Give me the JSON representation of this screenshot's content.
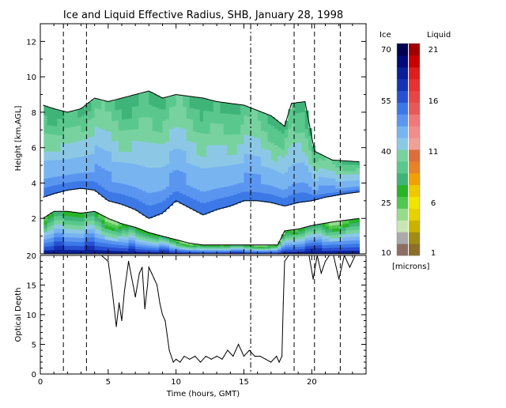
{
  "chart_data": [
    {
      "type": "heatmap",
      "title": "Ice and Liquid Effective Radius, SHB, January 28, 1998",
      "xlim": [
        0,
        24
      ],
      "ylim": [
        0,
        13
      ],
      "ylabel": "Height [km,AGL]",
      "y_ticks": [
        "2",
        "4",
        "6",
        "8",
        "10",
        "12"
      ],
      "colorbar": {
        "ice_label": "Ice",
        "liquid_label": "Liquid",
        "units_label": "[microns]",
        "ice_ticks": [
          "10",
          "25",
          "40",
          "55",
          "70"
        ],
        "liquid_ticks": [
          "1",
          "6",
          "11",
          "16",
          "21"
        ],
        "ice_colors": [
          "#8c6e64",
          "#aaaaaa",
          "#c8e6b4",
          "#96dc8c",
          "#50c850",
          "#28b428",
          "#40b478",
          "#5ac88c",
          "#78d2a0",
          "#8cc8e6",
          "#78b4f0",
          "#5a96f0",
          "#3c78e6",
          "#2850d2",
          "#1432b4",
          "#0a1e96",
          "#000a78",
          "#000050"
        ],
        "liquid_colors": [
          "#8c6e28",
          "#a08c14",
          "#c8b400",
          "#e6d200",
          "#f0e600",
          "#f0c800",
          "#f0a000",
          "#e68228",
          "#dc6e3c",
          "#f0a096",
          "#f08c8c",
          "#f07878",
          "#e65a5a",
          "#e64646",
          "#e63232",
          "#dc1e1e",
          "#c80000",
          "#a00000"
        ]
      },
      "dashed_times_hours": [
        1.7,
        3.4,
        18.7,
        20.2,
        22.1
      ],
      "dashdot_times_hours": [
        15.5
      ],
      "layers": [
        {
          "name": "upper",
          "ice_radius_microns": [
            30,
            50
          ],
          "top_km": [
            [
              0.2,
              8.4
            ],
            [
              1.0,
              8.2
            ],
            [
              2.0,
              8.0
            ],
            [
              3.0,
              8.2
            ],
            [
              4.0,
              8.8
            ],
            [
              5.0,
              8.6
            ],
            [
              6.0,
              8.8
            ],
            [
              7.0,
              9.0
            ],
            [
              8.0,
              9.2
            ],
            [
              9.0,
              8.8
            ],
            [
              10.0,
              9.0
            ],
            [
              11.0,
              8.9
            ],
            [
              12.0,
              8.8
            ],
            [
              13.0,
              8.6
            ],
            [
              14.0,
              8.5
            ],
            [
              15.0,
              8.4
            ],
            [
              16.0,
              8.1
            ],
            [
              17.0,
              7.8
            ],
            [
              18.0,
              7.2
            ],
            [
              18.5,
              8.5
            ],
            [
              19.5,
              8.6
            ],
            [
              20.2,
              5.8
            ],
            [
              21.5,
              5.3
            ],
            [
              23.5,
              5.2
            ]
          ],
          "base_km": [
            [
              0.2,
              3.2
            ],
            [
              1.0,
              3.4
            ],
            [
              2.0,
              3.6
            ],
            [
              3.0,
              3.7
            ],
            [
              4.0,
              3.6
            ],
            [
              5.0,
              3.0
            ],
            [
              6.0,
              2.8
            ],
            [
              7.0,
              2.5
            ],
            [
              8.0,
              2.0
            ],
            [
              9.0,
              2.3
            ],
            [
              10.0,
              3.0
            ],
            [
              11.0,
              2.6
            ],
            [
              12.0,
              2.2
            ],
            [
              13.0,
              2.5
            ],
            [
              14.0,
              2.7
            ],
            [
              15.0,
              3.0
            ],
            [
              16.0,
              3.0
            ],
            [
              17.0,
              2.9
            ],
            [
              18.0,
              2.7
            ],
            [
              19.0,
              2.9
            ],
            [
              20.0,
              3.0
            ],
            [
              21.0,
              3.2
            ],
            [
              22.5,
              3.4
            ],
            [
              23.5,
              3.5
            ]
          ]
        },
        {
          "name": "lower",
          "ice_radius_microns": [
            20,
            60
          ],
          "top_km": [
            [
              0.2,
              2.0
            ],
            [
              1.0,
              2.4
            ],
            [
              2.0,
              2.4
            ],
            [
              3.0,
              2.3
            ],
            [
              4.0,
              2.4
            ],
            [
              5.0,
              2.0
            ],
            [
              6.0,
              1.7
            ],
            [
              7.0,
              1.5
            ],
            [
              8.0,
              1.2
            ],
            [
              9.0,
              1.0
            ],
            [
              10.0,
              0.8
            ],
            [
              11.0,
              0.6
            ],
            [
              12.0,
              0.5
            ],
            [
              13.0,
              0.5
            ],
            [
              14.0,
              0.5
            ],
            [
              15.0,
              0.5
            ],
            [
              16.0,
              0.5
            ],
            [
              17.5,
              0.5
            ],
            [
              18.0,
              1.3
            ],
            [
              19.0,
              1.4
            ],
            [
              20.0,
              1.6
            ],
            [
              21.5,
              1.8
            ],
            [
              23.5,
              2.0
            ]
          ],
          "base_km": [
            [
              0.2,
              0.0
            ],
            [
              23.5,
              0.0
            ]
          ]
        }
      ]
    },
    {
      "type": "line",
      "xlabel": "Time (hours, GMT)",
      "ylabel": "Optical Depth",
      "xlim": [
        0,
        24
      ],
      "ylim": [
        0,
        20
      ],
      "x_ticks": [
        "0",
        "5",
        "10",
        "15",
        "20"
      ],
      "y_ticks": [
        "0",
        "5",
        "10",
        "15",
        "20"
      ],
      "x": [
        0.2,
        1.5,
        2.5,
        3.4,
        4.5,
        5.0,
        5.3,
        5.6,
        5.8,
        6.0,
        6.2,
        6.5,
        7.0,
        7.3,
        7.5,
        7.7,
        7.9,
        8.0,
        8.2,
        8.4,
        8.6,
        8.8,
        9.0,
        9.2,
        9.5,
        9.8,
        10.0,
        10.3,
        10.6,
        11.0,
        11.4,
        11.8,
        12.2,
        12.6,
        13.0,
        13.4,
        13.8,
        14.2,
        14.6,
        15.0,
        15.4,
        15.8,
        16.2,
        16.6,
        17.0,
        17.4,
        17.6,
        17.8,
        17.9,
        18.0,
        18.3,
        18.6,
        18.9,
        19.2,
        19.5,
        19.8,
        20.1,
        20.4,
        20.7,
        21.0,
        21.3,
        21.6,
        22.0,
        22.4,
        22.8,
        23.2,
        23.6
      ],
      "y": [
        20,
        20,
        20,
        20,
        20,
        19,
        14,
        8,
        12,
        9,
        14,
        19,
        13,
        17,
        18,
        11,
        15,
        18,
        17,
        16,
        15,
        12,
        10,
        9,
        4,
        2,
        2.5,
        2,
        3,
        2.5,
        3,
        2,
        3,
        2.5,
        3,
        2.5,
        4,
        3,
        5,
        3,
        4,
        3,
        3,
        2.5,
        2,
        3,
        2,
        3,
        12,
        19,
        20,
        20,
        20,
        20,
        20,
        20,
        16,
        20,
        17,
        19,
        20,
        20,
        16,
        20,
        18,
        20,
        20
      ]
    }
  ]
}
